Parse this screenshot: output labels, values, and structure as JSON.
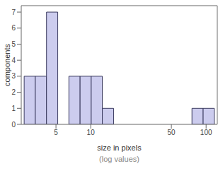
{
  "chart_data": {
    "type": "histogram",
    "bins": [
      2.65,
      3.31,
      4.14,
      5.18,
      6.47,
      8.09,
      10.1,
      12.6,
      15.8,
      19.8,
      24.7,
      30.9,
      38.6,
      48.3,
      60.3,
      75.4,
      94.3,
      117.9
    ],
    "counts": [
      3,
      3,
      7,
      0,
      3,
      3,
      3,
      1,
      0,
      0,
      0,
      0,
      0,
      0,
      0,
      1,
      1
    ],
    "xlabel": "size in pixels",
    "x_subtitle": "(log values)",
    "ylabel": "components",
    "xlim": [
      2.5,
      125
    ],
    "ylim": [
      0,
      7.4
    ],
    "xticks": [
      5,
      10,
      50,
      100
    ],
    "yticks": [
      0,
      1,
      2,
      3,
      4,
      5,
      6,
      7
    ],
    "log": "x",
    "grid": false,
    "color": "#ccccee"
  }
}
